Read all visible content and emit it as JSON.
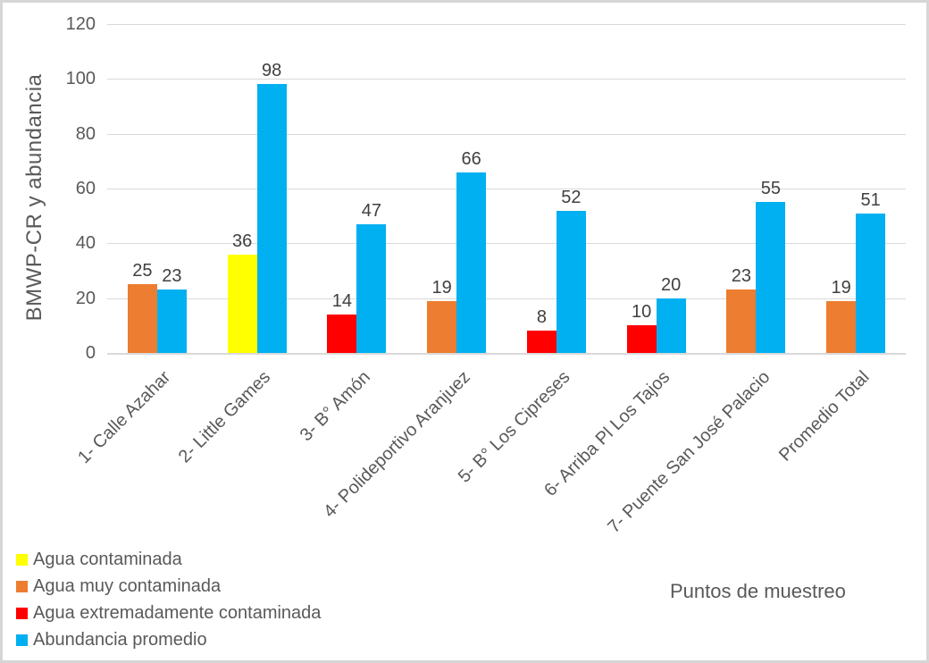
{
  "chart_data": {
    "type": "bar",
    "title": "",
    "xlabel": "Puntos de muestreo",
    "ylabel": "BMWP-CR y abundancia",
    "ylim": [
      0,
      120
    ],
    "yticks": [
      0,
      20,
      40,
      60,
      80,
      100,
      120
    ],
    "grid": "horizontal gridlines on",
    "legend_position": "bottom-left",
    "categories": [
      "1- Calle Azahar",
      "2- Little Games",
      "3- B° Amón",
      "4- Polideportivo Aranjuez",
      "5- B° Los Cipreses",
      "6- Arriba Pl Los Tajos",
      "7- Puente San José Palacio",
      "Promedio Total"
    ],
    "series": [
      {
        "name": "Agua contaminada",
        "color": "#FFFF00",
        "values": [
          null,
          36,
          null,
          null,
          null,
          null,
          null,
          null
        ]
      },
      {
        "name": "Agua muy contaminada",
        "color": "#ED7D31",
        "values": [
          25,
          null,
          null,
          19,
          null,
          null,
          23,
          19
        ]
      },
      {
        "name": "Agua extremadamente contaminada",
        "color": "#FF0000",
        "values": [
          null,
          null,
          14,
          null,
          8,
          10,
          null,
          null
        ]
      },
      {
        "name": "Abundancia promedio",
        "color": "#00B0F0",
        "values": [
          23,
          98,
          47,
          66,
          52,
          20,
          55,
          51
        ]
      }
    ],
    "colors": {
      "gridline": "#d9d9d9",
      "axis_text": "#595959",
      "data_label": "#404040",
      "border": "#d6d6d6"
    }
  }
}
